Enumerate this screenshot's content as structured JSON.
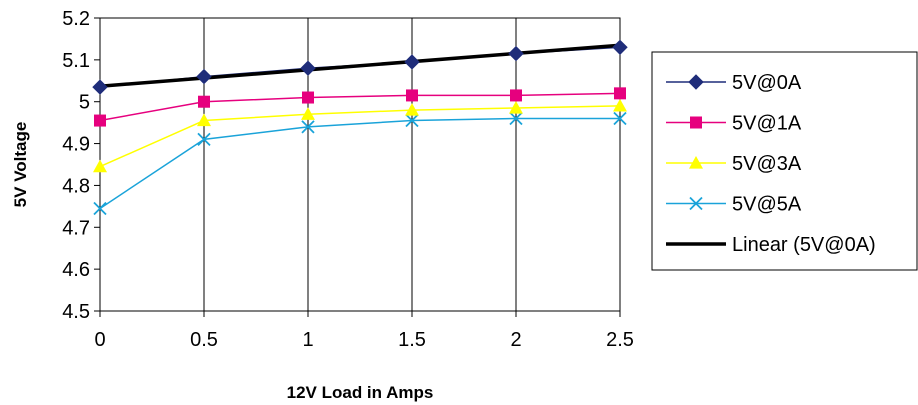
{
  "chart_data": {
    "type": "line",
    "xlabel": "12V Load in Amps",
    "ylabel": "5V Voltage",
    "x": [
      0,
      0.5,
      1,
      1.5,
      2,
      2.5
    ],
    "x_tick_labels": [
      "0",
      "0.5",
      "1",
      "1.5",
      "2",
      "2.5"
    ],
    "y_tick_labels": [
      "4.5",
      "4.6",
      "4.7",
      "4.8",
      "4.9",
      "5",
      "5.1",
      "5.2"
    ],
    "ylim": [
      4.5,
      5.2
    ],
    "grid": "vertical",
    "legend_position": "right",
    "series": [
      {
        "name": "5V@0A",
        "color": "#1f2d7a",
        "marker": "diamond",
        "values": [
          5.035,
          5.06,
          5.08,
          5.095,
          5.115,
          5.13
        ]
      },
      {
        "name": "5V@1A",
        "color": "#e6007e",
        "marker": "square",
        "values": [
          4.955,
          5.0,
          5.01,
          5.015,
          5.015,
          5.02
        ]
      },
      {
        "name": "5V@3A",
        "color": "#ffff00",
        "marker": "triangle",
        "values": [
          4.845,
          4.955,
          4.97,
          4.98,
          4.985,
          4.99
        ]
      },
      {
        "name": "5V@5A",
        "color": "#1aa3d9",
        "marker": "x",
        "values": [
          4.745,
          4.91,
          4.94,
          4.955,
          4.96,
          4.96
        ]
      }
    ],
    "trendline": {
      "name": "Linear (5V@0A)",
      "color": "#000000",
      "start": 5.037,
      "end": 5.135
    }
  }
}
